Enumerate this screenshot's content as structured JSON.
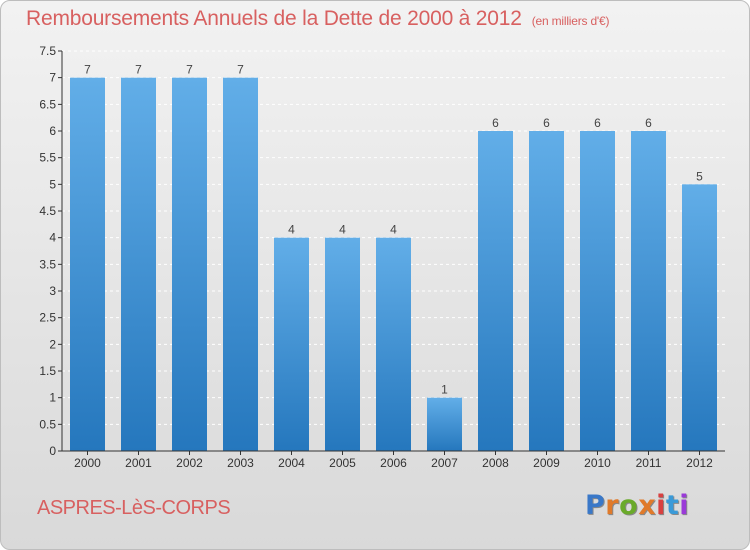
{
  "header": {
    "title": "Remboursements Annuels de la Dette de 2000 à 2012",
    "unit": "(en milliers d'€)"
  },
  "footer": {
    "commune": "ASPRES-LèS-CORPS",
    "logo": "Proxiti",
    "logo_colors": [
      "#3a78c8",
      "#e07a2a",
      "#6aaa2a",
      "#e07a2a",
      "#d84040",
      "#3a9ad8",
      "#9a3ad8"
    ]
  },
  "colors": {
    "bar_light": "#62aee8",
    "bar_dark": "#2577bd",
    "title": "#d86060",
    "axis": "#333333"
  },
  "chart_data": {
    "type": "bar",
    "title": "Remboursements Annuels de la Dette de 2000 à 2012",
    "subtitle": "(en milliers d'€)",
    "xlabel": "",
    "ylabel": "",
    "categories": [
      "2000",
      "2001",
      "2002",
      "2003",
      "2004",
      "2005",
      "2006",
      "2007",
      "2008",
      "2009",
      "2010",
      "2011",
      "2012"
    ],
    "values": [
      7,
      7,
      7,
      7,
      4,
      4,
      4,
      1,
      6,
      6,
      6,
      6,
      5
    ],
    "value_labels": [
      "7",
      "7",
      "7",
      "7",
      "4",
      "4",
      "4",
      "1",
      "6",
      "6",
      "6",
      "6",
      "5"
    ],
    "ylim": [
      0,
      7.5
    ],
    "yticks": [
      0,
      0.5,
      1,
      1.5,
      2,
      2.5,
      3,
      3.5,
      4,
      4.5,
      5,
      5.5,
      6,
      6.5,
      7,
      7.5
    ],
    "ytick_labels": [
      "0",
      "0.5",
      "1",
      "1.5",
      "2",
      "2.5",
      "3",
      "3.5",
      "4",
      "4.5",
      "5",
      "5.5",
      "6",
      "6.5",
      "7",
      "7.5"
    ],
    "grid": true,
    "legend": "none"
  }
}
